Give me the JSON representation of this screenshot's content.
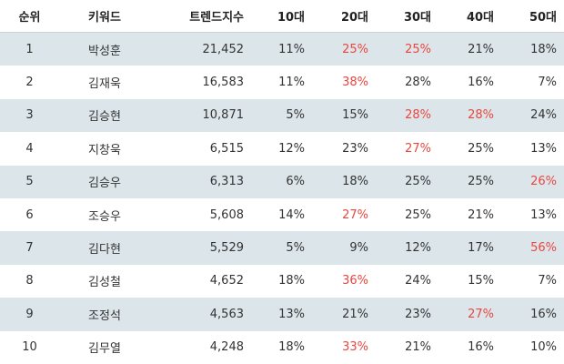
{
  "table": {
    "header": [
      "순위",
      "키워드",
      "트렌드지수",
      "10대",
      "20대",
      "30대",
      "40대",
      "50대"
    ],
    "rows": [
      [
        "1",
        "박성훈",
        "21,452",
        "11%",
        "25%",
        "25%",
        "21%",
        "18%"
      ],
      [
        "2",
        "김재욱",
        "16,583",
        "11%",
        "38%",
        "28%",
        "16%",
        "7%"
      ],
      [
        "3",
        "김승현",
        "10,871",
        "5%",
        "15%",
        "28%",
        "28%",
        "24%"
      ],
      [
        "4",
        "지창욱",
        "6,515",
        "12%",
        "23%",
        "27%",
        "25%",
        "13%"
      ],
      [
        "5",
        "김승우",
        "6,313",
        "6%",
        "18%",
        "25%",
        "25%",
        "26%"
      ],
      [
        "6",
        "조승우",
        "5,608",
        "14%",
        "27%",
        "25%",
        "21%",
        "13%"
      ],
      [
        "7",
        "김다현",
        "5,529",
        "5%",
        "9%",
        "12%",
        "17%",
        "56%"
      ],
      [
        "8",
        "김성철",
        "4,652",
        "18%",
        "36%",
        "24%",
        "15%",
        "7%"
      ],
      [
        "9",
        "조정석",
        "4,563",
        "13%",
        "21%",
        "23%",
        "27%",
        "16%"
      ],
      [
        "10",
        "김무열",
        "4,248",
        "18%",
        "33%",
        "21%",
        "16%",
        "10%"
      ]
    ],
    "highlight": [
      [
        4,
        5
      ],
      [
        4
      ],
      [
        5,
        6
      ],
      [
        5
      ],
      [
        7
      ],
      [
        4
      ],
      [
        7
      ],
      [
        4
      ],
      [
        6
      ],
      [
        4
      ]
    ],
    "highlight_color": "#e8473f",
    "stripe_color": "#dce6ea"
  }
}
